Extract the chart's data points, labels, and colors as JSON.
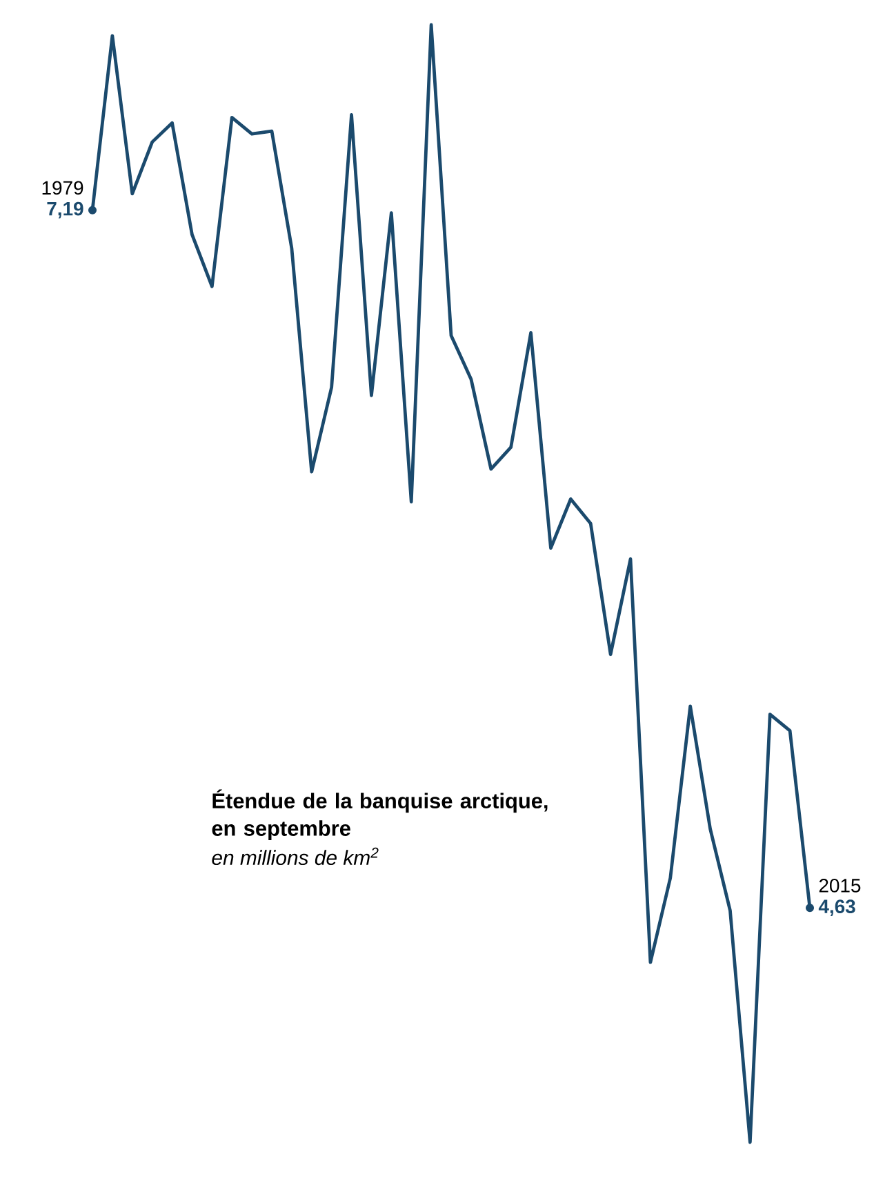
{
  "chart_data": {
    "type": "line",
    "title": "Étendue de la banquise arctique, en septembre",
    "subtitle": "en millions de km$^{2}$",
    "annotations": [
      "1979",
      "2015"
    ],
    "categories": [
      null,
      null,
      null,
      null,
      null,
      null,
      null,
      null,
      null,
      null,
      null,
      null,
      null,
      null,
      null,
      null,
      null,
      null,
      null,
      null,
      null,
      null,
      null,
      null,
      null,
      null,
      null,
      null,
      null,
      null,
      null,
      null,
      null,
      null,
      null,
      null,
      null
    ],
    "series": [
      {
        "color": "#1b4a6d",
        "values": [
          7.19,
          7.83,
          7.25,
          7.44,
          7.51,
          7.1,
          6.91,
          7.53,
          7.47,
          7.48,
          7.05,
          6.23,
          6.54,
          7.54,
          6.51,
          7.18,
          6.12,
          7.87,
          6.73,
          6.57,
          6.24,
          6.32,
          6.74,
          5.95,
          6.13,
          6.04,
          5.56,
          5.91,
          4.43,
          4.74,
          5.37,
          4.92,
          4.62,
          3.77,
          5.34,
          5.28,
          4.63
        ],
        "value_labels": [
          "7,19",
          null,
          null,
          null,
          null,
          null,
          null,
          null,
          null,
          null,
          null,
          null,
          null,
          null,
          null,
          null,
          null,
          null,
          null,
          null,
          null,
          null,
          null,
          null,
          null,
          null,
          null,
          null,
          null,
          null,
          null,
          null,
          null,
          null,
          null,
          null,
          "4,63"
        ]
      }
    ]
  }
}
